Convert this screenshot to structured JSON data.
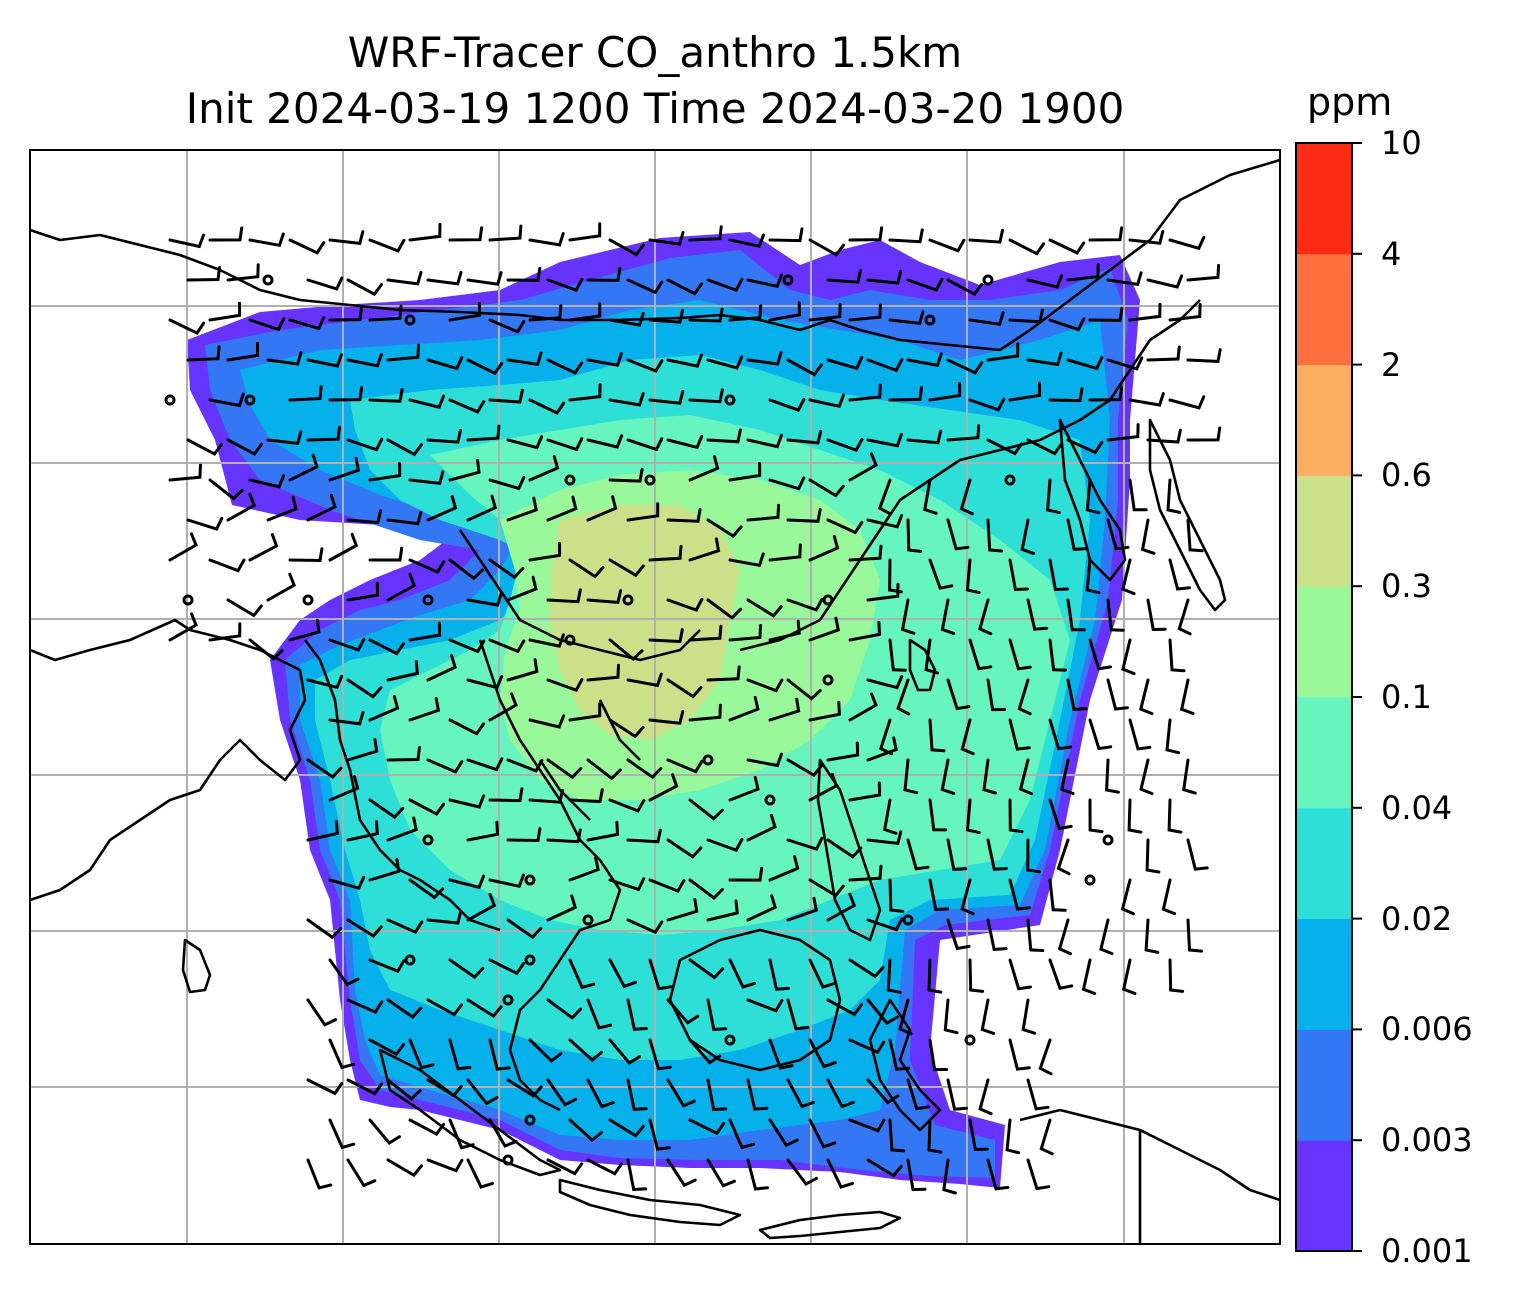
{
  "title": {
    "line1": "WRF-Tracer CO_anthro 1.5km",
    "line2": "Init 2024-03-19 1200 Time 2024-03-20 1900"
  },
  "colorbar": {
    "unit": "ppm",
    "levels": [
      "0.001",
      "0.003",
      "0.006",
      "0.02",
      "0.04",
      "0.1",
      "0.3",
      "0.6",
      "2",
      "4",
      "10"
    ],
    "colors": [
      "#6633ff",
      "#3377f5",
      "#06b0eb",
      "#2ddfd6",
      "#66f5be",
      "#99f899",
      "#cce089",
      "#fcae60",
      "#ff7040",
      "#ff2a14"
    ]
  },
  "map": {
    "field": "CO_anthro",
    "background": "#ffffff",
    "gridline_color": "#b0b0b0",
    "coastline_color": "#000000",
    "wind_symbol": "wind-barbs"
  }
}
